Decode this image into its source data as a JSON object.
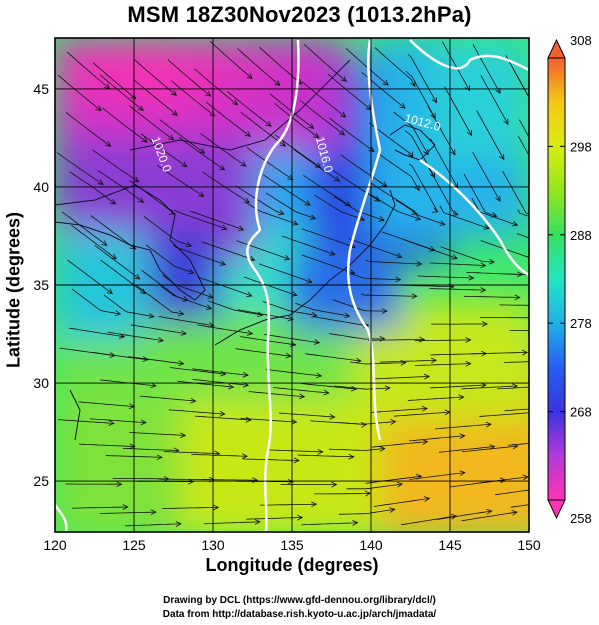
{
  "title": "MSM 18Z30Nov2023 (1013.2hPa)",
  "map": {
    "xlabel": "Longitude (degrees)",
    "ylabel": "Latitude  (degrees)",
    "xlim": [
      120,
      150
    ],
    "ylim": [
      22.4,
      47.6
    ],
    "x_ticks": [
      120,
      125,
      130,
      135,
      140,
      145,
      150
    ],
    "y_ticks": [
      25,
      30,
      35,
      40,
      45
    ],
    "grid": true,
    "isobars": [
      {
        "label": "1020.0",
        "lon": 126.5,
        "lat": 41.6,
        "rotate": 70
      },
      {
        "label": "1016.0",
        "lon": 136.8,
        "lat": 41.6,
        "rotate": 75
      },
      {
        "label": "1012.0",
        "lon": 143.2,
        "lat": 43.1,
        "rotate": 15
      }
    ]
  },
  "colorbar": {
    "min": 258,
    "max": 308,
    "ticks": [
      258,
      268,
      278,
      288,
      298,
      308
    ],
    "colors": [
      "#ff33b6",
      "#b23ad8",
      "#3a34e0",
      "#2660f0",
      "#22b0e6",
      "#20e6c0",
      "#38e060",
      "#94e61c",
      "#d8ec12",
      "#f4c816",
      "#f5931e",
      "#f06030"
    ]
  },
  "credits": [
    "Drawing by DCL (https://www.gfd-dennou.org/library/dcl/)",
    "Data from http://database.rish.kyoto-u.ac.jp/arch/jmadata/"
  ]
}
